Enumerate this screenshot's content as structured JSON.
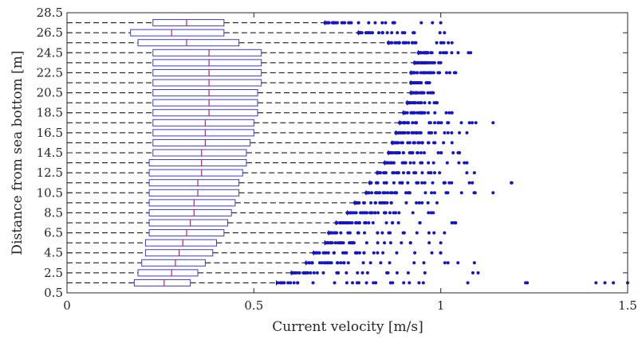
{
  "chart_data": {
    "type": "boxplot",
    "orientation": "horizontal",
    "xlabel": "Current velocity [m/s]",
    "ylabel": "Distance from sea bottom [m]",
    "xlim": [
      0,
      1.5
    ],
    "ylim": [
      0.5,
      28.5
    ],
    "xticks": [
      "0",
      "0.5",
      "1",
      "1.5"
    ],
    "yticks": [
      "0.5",
      "2.5",
      "4.5",
      "6.5",
      "8.5",
      "10.5",
      "12.5",
      "14.5",
      "16.5",
      "18.5",
      "20.5",
      "22.5",
      "24.5",
      "26.5",
      "28.5"
    ],
    "grid": false,
    "colors": {
      "box": "#3b3bd0",
      "median": "#d02050",
      "whisker": "#000000",
      "outlier": "#1515c8"
    },
    "boxes": [
      {
        "y": 1.5,
        "q1": 0.18,
        "median": 0.26,
        "q3": 0.33,
        "whisker_low": 0.0,
        "whisker_high": 0.56,
        "outliers_max": 1.5
      },
      {
        "y": 2.5,
        "q1": 0.19,
        "median": 0.28,
        "q3": 0.35,
        "whisker_low": 0.0,
        "whisker_high": 0.6,
        "outliers_max": 1.1
      },
      {
        "y": 3.5,
        "q1": 0.2,
        "median": 0.29,
        "q3": 0.37,
        "whisker_low": 0.0,
        "whisker_high": 0.64,
        "outliers_max": 1.09
      },
      {
        "y": 4.5,
        "q1": 0.21,
        "median": 0.3,
        "q3": 0.39,
        "whisker_low": 0.0,
        "whisker_high": 0.66,
        "outliers_max": 1.0
      },
      {
        "y": 5.5,
        "q1": 0.21,
        "median": 0.31,
        "q3": 0.4,
        "whisker_low": 0.0,
        "whisker_high": 0.69,
        "outliers_max": 1.0
      },
      {
        "y": 6.5,
        "q1": 0.22,
        "median": 0.32,
        "q3": 0.42,
        "whisker_low": 0.0,
        "whisker_high": 0.7,
        "outliers_max": 1.01
      },
      {
        "y": 7.5,
        "q1": 0.22,
        "median": 0.33,
        "q3": 0.43,
        "whisker_low": 0.0,
        "whisker_high": 0.72,
        "outliers_max": 1.04
      },
      {
        "y": 8.5,
        "q1": 0.22,
        "median": 0.34,
        "q3": 0.44,
        "whisker_low": 0.0,
        "whisker_high": 0.75,
        "outliers_max": 0.98
      },
      {
        "y": 9.5,
        "q1": 0.22,
        "median": 0.34,
        "q3": 0.45,
        "whisker_low": 0.0,
        "whisker_high": 0.77,
        "outliers_max": 0.99
      },
      {
        "y": 10.5,
        "q1": 0.22,
        "median": 0.35,
        "q3": 0.46,
        "whisker_low": 0.0,
        "whisker_high": 0.8,
        "outliers_max": 1.14
      },
      {
        "y": 11.5,
        "q1": 0.22,
        "median": 0.35,
        "q3": 0.46,
        "whisker_low": 0.0,
        "whisker_high": 0.81,
        "outliers_max": 1.19
      },
      {
        "y": 12.5,
        "q1": 0.22,
        "median": 0.36,
        "q3": 0.47,
        "whisker_low": 0.0,
        "whisker_high": 0.83,
        "outliers_max": 1.09
      },
      {
        "y": 13.5,
        "q1": 0.22,
        "median": 0.36,
        "q3": 0.48,
        "whisker_low": 0.0,
        "whisker_high": 0.85,
        "outliers_max": 1.07
      },
      {
        "y": 14.5,
        "q1": 0.23,
        "median": 0.36,
        "q3": 0.48,
        "whisker_low": 0.0,
        "whisker_high": 0.86,
        "outliers_max": 1.05
      },
      {
        "y": 15.5,
        "q1": 0.23,
        "median": 0.37,
        "q3": 0.49,
        "whisker_low": 0.0,
        "whisker_high": 0.87,
        "outliers_max": 1.03
      },
      {
        "y": 16.5,
        "q1": 0.23,
        "median": 0.37,
        "q3": 0.5,
        "whisker_low": 0.0,
        "whisker_high": 0.88,
        "outliers_max": 1.07
      },
      {
        "y": 17.5,
        "q1": 0.23,
        "median": 0.37,
        "q3": 0.5,
        "whisker_low": 0.0,
        "whisker_high": 0.89,
        "outliers_max": 1.14
      },
      {
        "y": 18.5,
        "q1": 0.23,
        "median": 0.38,
        "q3": 0.51,
        "whisker_low": 0.0,
        "whisker_high": 0.9,
        "outliers_max": 1.03
      },
      {
        "y": 19.5,
        "q1": 0.23,
        "median": 0.38,
        "q3": 0.51,
        "whisker_low": 0.0,
        "whisker_high": 0.91,
        "outliers_max": 0.99
      },
      {
        "y": 20.5,
        "q1": 0.23,
        "median": 0.38,
        "q3": 0.51,
        "whisker_low": 0.0,
        "whisker_high": 0.92,
        "outliers_max": 0.98
      },
      {
        "y": 21.5,
        "q1": 0.23,
        "median": 0.38,
        "q3": 0.52,
        "whisker_low": 0.0,
        "whisker_high": 0.92,
        "outliers_max": 0.97
      },
      {
        "y": 22.5,
        "q1": 0.23,
        "median": 0.38,
        "q3": 0.52,
        "whisker_low": 0.0,
        "whisker_high": 0.92,
        "outliers_max": 1.04
      },
      {
        "y": 23.5,
        "q1": 0.23,
        "median": 0.38,
        "q3": 0.52,
        "whisker_low": 0.0,
        "whisker_high": 0.93,
        "outliers_max": 1.0
      },
      {
        "y": 24.5,
        "q1": 0.23,
        "median": 0.38,
        "q3": 0.52,
        "whisker_low": 0.0,
        "whisker_high": 0.94,
        "outliers_max": 1.08
      },
      {
        "y": 25.5,
        "q1": 0.19,
        "median": 0.32,
        "q3": 0.46,
        "whisker_low": 0.0,
        "whisker_high": 0.86,
        "outliers_max": 1.03
      },
      {
        "y": 26.5,
        "q1": 0.17,
        "median": 0.28,
        "q3": 0.42,
        "whisker_low": 0.0,
        "whisker_high": 0.78,
        "outliers_max": 1.01
      },
      {
        "y": 27.5,
        "q1": 0.23,
        "median": 0.32,
        "q3": 0.42,
        "whisker_low": 0.0,
        "whisker_high": 0.69,
        "outliers_max": 1.0
      }
    ]
  }
}
